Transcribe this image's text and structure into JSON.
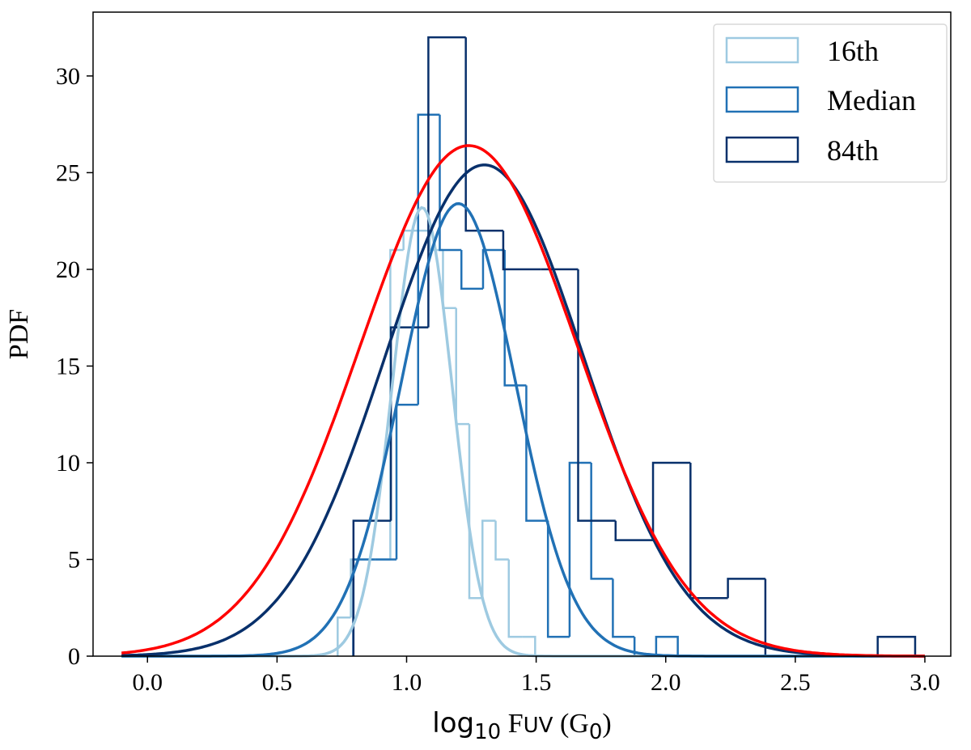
{
  "chart_data": {
    "type": "histogram-step-with-gaussian-fits",
    "xlabel": {
      "main": "log",
      "sub1": "10",
      "mid": " F",
      "sub2": "UV",
      "tail": " (G",
      "sub3": "0",
      "close": ")"
    },
    "ylabel": "PDF",
    "xlim": [
      -0.21,
      3.1
    ],
    "ylim": [
      0,
      33.3
    ],
    "xticks": [
      0.0,
      0.5,
      1.0,
      1.5,
      2.0,
      2.5,
      3.0
    ],
    "xtick_labels": [
      "0.0",
      "0.5",
      "1.0",
      "1.5",
      "2.0",
      "2.5",
      "3.0"
    ],
    "yticks": [
      0,
      5,
      10,
      15,
      20,
      25,
      30
    ],
    "ytick_labels": [
      "0",
      "5",
      "10",
      "15",
      "20",
      "25",
      "30"
    ],
    "grid": false,
    "legend_placement": "top-right",
    "series": [
      {
        "name": "16th",
        "color": "#9ecae1",
        "bin_start": 0.734,
        "bin_width": 0.0508,
        "counts": [
          2,
          5,
          5,
          5,
          21,
          22,
          22,
          21,
          18,
          12,
          3,
          7,
          5,
          1,
          1
        ]
      },
      {
        "name": "Median",
        "color": "#2171b5",
        "bin_start": 0.794,
        "bin_width": 0.0835,
        "counts": [
          5,
          5,
          13,
          28,
          21,
          19,
          21,
          14,
          7,
          1,
          10,
          4,
          1,
          0,
          1
        ]
      },
      {
        "name": "84th",
        "color": "#08306b",
        "bin_start": 0.795,
        "bin_width": 0.1445,
        "counts": [
          7,
          17,
          32,
          22,
          20,
          20,
          7,
          6,
          10,
          3,
          4,
          0,
          0,
          0,
          1
        ]
      }
    ],
    "curves": [
      {
        "color": "#9ecae1",
        "mean": 1.06,
        "sigma": 0.115,
        "peak": 23.2,
        "x_range": [
          -0.1,
          3.0
        ]
      },
      {
        "color": "#2171b5",
        "mean": 1.2,
        "sigma": 0.22,
        "peak": 23.4,
        "x_range": [
          -0.1,
          3.0
        ]
      },
      {
        "color": "#08306b",
        "mean": 1.3,
        "sigma": 0.385,
        "peak": 25.4,
        "x_range": [
          -0.1,
          3.0
        ]
      },
      {
        "color": "#ff0000",
        "mean": 1.24,
        "sigma": 0.42,
        "peak": 26.4,
        "x_range": [
          -0.1,
          3.0
        ]
      }
    ]
  }
}
